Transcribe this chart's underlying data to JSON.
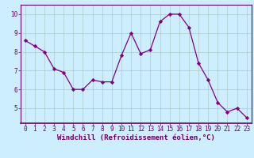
{
  "x": [
    0,
    1,
    2,
    3,
    4,
    5,
    6,
    7,
    8,
    9,
    10,
    11,
    12,
    13,
    14,
    15,
    16,
    17,
    18,
    19,
    20,
    21,
    22,
    23
  ],
  "y": [
    8.6,
    8.3,
    8.0,
    7.1,
    6.9,
    6.0,
    6.0,
    6.5,
    6.4,
    6.4,
    7.8,
    9.0,
    7.9,
    8.1,
    9.6,
    10.0,
    10.0,
    9.3,
    7.4,
    6.5,
    5.3,
    4.8,
    5.0,
    4.5
  ],
  "line_color": "#800080",
  "marker": "D",
  "marker_size": 2.2,
  "bg_color": "#cceeff",
  "grid_color": "#aacccc",
  "xlabel": "Windchill (Refroidissement éolien,°C)",
  "ylim": [
    4.2,
    10.5
  ],
  "xlim": [
    -0.5,
    23.5
  ],
  "yticks": [
    5,
    6,
    7,
    8,
    9,
    10
  ],
  "xticks": [
    0,
    1,
    2,
    3,
    4,
    5,
    6,
    7,
    8,
    9,
    10,
    11,
    12,
    13,
    14,
    15,
    16,
    17,
    18,
    19,
    20,
    21,
    22,
    23
  ],
  "tick_label_size": 5.5,
  "xlabel_size": 6.5,
  "xlabel_color": "#660066",
  "tick_color": "#660066",
  "spine_color": "#660066"
}
